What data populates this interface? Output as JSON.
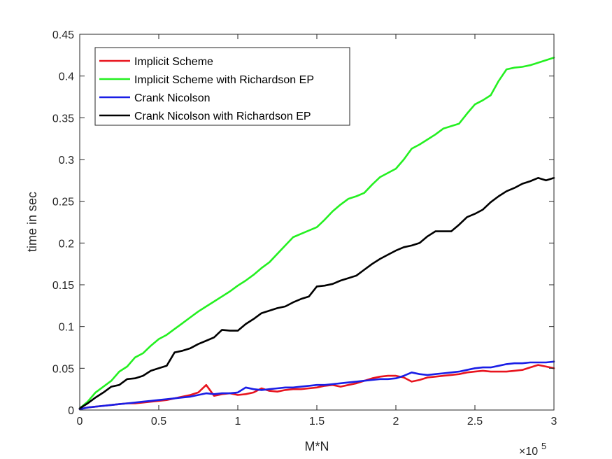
{
  "chart_data": {
    "type": "line",
    "xlabel": "M*N",
    "ylabel": "time in sec",
    "x_exponent_base": "×10",
    "x_exponent_power": "5",
    "xlim": [
      0,
      3
    ],
    "ylim": [
      0,
      0.45
    ],
    "xticks": [
      0,
      0.5,
      1,
      1.5,
      2,
      2.5,
      3
    ],
    "xtick_labels": [
      "0",
      "0.5",
      "1",
      "1.5",
      "2",
      "2.5",
      "3"
    ],
    "yticks": [
      0,
      0.05,
      0.1,
      0.15,
      0.2,
      0.25,
      0.3,
      0.35,
      0.4,
      0.45
    ],
    "ytick_labels": [
      "0",
      "0.05",
      "0.1",
      "0.15",
      "0.2",
      "0.25",
      "0.3",
      "0.35",
      "0.4",
      "0.45"
    ],
    "grid": false,
    "legend_position": "top-left",
    "series": [
      {
        "name": "Implicit Scheme",
        "color": "#e8141e",
        "x": [
          0,
          0.05,
          0.1,
          0.15,
          0.2,
          0.25,
          0.3,
          0.35,
          0.4,
          0.45,
          0.5,
          0.55,
          0.6,
          0.65,
          0.7,
          0.75,
          0.8,
          0.85,
          0.9,
          0.95,
          1.0,
          1.05,
          1.1,
          1.15,
          1.2,
          1.25,
          1.3,
          1.35,
          1.4,
          1.45,
          1.5,
          1.55,
          1.6,
          1.65,
          1.7,
          1.75,
          1.8,
          1.85,
          1.9,
          1.95,
          2.0,
          2.05,
          2.1,
          2.15,
          2.2,
          2.25,
          2.3,
          2.35,
          2.4,
          2.45,
          2.5,
          2.55,
          2.6,
          2.65,
          2.7,
          2.75,
          2.8,
          2.85,
          2.9,
          2.95,
          3.0
        ],
        "y": [
          0.001,
          0.003,
          0.004,
          0.005,
          0.006,
          0.007,
          0.008,
          0.008,
          0.009,
          0.01,
          0.011,
          0.012,
          0.014,
          0.016,
          0.018,
          0.021,
          0.03,
          0.017,
          0.019,
          0.02,
          0.018,
          0.019,
          0.021,
          0.026,
          0.023,
          0.022,
          0.024,
          0.025,
          0.025,
          0.026,
          0.027,
          0.029,
          0.03,
          0.028,
          0.03,
          0.032,
          0.035,
          0.038,
          0.04,
          0.041,
          0.041,
          0.039,
          0.034,
          0.036,
          0.039,
          0.04,
          0.041,
          0.042,
          0.043,
          0.045,
          0.046,
          0.047,
          0.046,
          0.046,
          0.046,
          0.047,
          0.048,
          0.051,
          0.054,
          0.052,
          0.05
        ]
      },
      {
        "name": "Implicit Scheme with Richardson EP",
        "color": "#24f021",
        "x": [
          0,
          0.05,
          0.1,
          0.15,
          0.2,
          0.25,
          0.3,
          0.35,
          0.4,
          0.45,
          0.5,
          0.55,
          0.6,
          0.65,
          0.7,
          0.75,
          0.8,
          0.85,
          0.9,
          0.95,
          1.0,
          1.05,
          1.1,
          1.15,
          1.2,
          1.25,
          1.3,
          1.35,
          1.4,
          1.45,
          1.5,
          1.55,
          1.6,
          1.65,
          1.7,
          1.75,
          1.8,
          1.85,
          1.9,
          1.95,
          2.0,
          2.05,
          2.1,
          2.15,
          2.2,
          2.25,
          2.3,
          2.35,
          2.4,
          2.45,
          2.5,
          2.55,
          2.6,
          2.65,
          2.7,
          2.75,
          2.8,
          2.85,
          2.9,
          2.95,
          3.0
        ],
        "y": [
          0.002,
          0.01,
          0.021,
          0.028,
          0.035,
          0.046,
          0.052,
          0.063,
          0.068,
          0.077,
          0.085,
          0.09,
          0.097,
          0.104,
          0.111,
          0.118,
          0.124,
          0.13,
          0.136,
          0.142,
          0.149,
          0.155,
          0.162,
          0.17,
          0.177,
          0.187,
          0.197,
          0.207,
          0.211,
          0.215,
          0.219,
          0.228,
          0.238,
          0.246,
          0.253,
          0.256,
          0.26,
          0.27,
          0.279,
          0.284,
          0.289,
          0.3,
          0.313,
          0.318,
          0.324,
          0.33,
          0.337,
          0.34,
          0.343,
          0.355,
          0.366,
          0.371,
          0.377,
          0.394,
          0.408,
          0.41,
          0.411,
          0.413,
          0.416,
          0.419,
          0.422
        ]
      },
      {
        "name": "Crank Nicolson",
        "color": "#1a1ee6",
        "x": [
          0,
          0.05,
          0.1,
          0.15,
          0.2,
          0.25,
          0.3,
          0.35,
          0.4,
          0.45,
          0.5,
          0.55,
          0.6,
          0.65,
          0.7,
          0.75,
          0.8,
          0.85,
          0.9,
          0.95,
          1.0,
          1.05,
          1.1,
          1.15,
          1.2,
          1.25,
          1.3,
          1.35,
          1.4,
          1.45,
          1.5,
          1.55,
          1.6,
          1.65,
          1.7,
          1.75,
          1.8,
          1.85,
          1.9,
          1.95,
          2.0,
          2.05,
          2.1,
          2.15,
          2.2,
          2.25,
          2.3,
          2.35,
          2.4,
          2.45,
          2.5,
          2.55,
          2.6,
          2.65,
          2.7,
          2.75,
          2.8,
          2.85,
          2.9,
          2.95,
          3.0
        ],
        "y": [
          0.001,
          0.003,
          0.004,
          0.005,
          0.006,
          0.007,
          0.008,
          0.009,
          0.01,
          0.011,
          0.012,
          0.013,
          0.014,
          0.015,
          0.016,
          0.018,
          0.02,
          0.019,
          0.02,
          0.02,
          0.021,
          0.027,
          0.025,
          0.024,
          0.025,
          0.026,
          0.027,
          0.027,
          0.028,
          0.029,
          0.03,
          0.03,
          0.031,
          0.032,
          0.033,
          0.034,
          0.035,
          0.036,
          0.037,
          0.037,
          0.038,
          0.041,
          0.045,
          0.043,
          0.042,
          0.043,
          0.044,
          0.045,
          0.046,
          0.048,
          0.05,
          0.051,
          0.051,
          0.053,
          0.055,
          0.056,
          0.056,
          0.057,
          0.057,
          0.057,
          0.058
        ]
      },
      {
        "name": "Crank Nicolson with Richardson EP",
        "color": "#000000",
        "x": [
          0,
          0.05,
          0.1,
          0.15,
          0.2,
          0.25,
          0.3,
          0.35,
          0.4,
          0.45,
          0.5,
          0.55,
          0.6,
          0.65,
          0.7,
          0.75,
          0.8,
          0.85,
          0.9,
          0.95,
          1.0,
          1.05,
          1.1,
          1.15,
          1.2,
          1.25,
          1.3,
          1.35,
          1.4,
          1.45,
          1.5,
          1.55,
          1.6,
          1.65,
          1.7,
          1.75,
          1.8,
          1.85,
          1.9,
          1.95,
          2.0,
          2.05,
          2.1,
          2.15,
          2.2,
          2.25,
          2.3,
          2.35,
          2.4,
          2.45,
          2.5,
          2.55,
          2.6,
          2.65,
          2.7,
          2.75,
          2.8,
          2.85,
          2.9,
          2.95,
          3.0
        ],
        "y": [
          0.002,
          0.008,
          0.015,
          0.021,
          0.028,
          0.03,
          0.037,
          0.038,
          0.041,
          0.047,
          0.05,
          0.053,
          0.069,
          0.071,
          0.074,
          0.079,
          0.083,
          0.087,
          0.096,
          0.095,
          0.095,
          0.103,
          0.109,
          0.116,
          0.119,
          0.122,
          0.124,
          0.129,
          0.133,
          0.136,
          0.148,
          0.149,
          0.151,
          0.155,
          0.158,
          0.161,
          0.168,
          0.175,
          0.181,
          0.186,
          0.191,
          0.195,
          0.197,
          0.2,
          0.208,
          0.214,
          0.214,
          0.214,
          0.222,
          0.231,
          0.235,
          0.24,
          0.249,
          0.256,
          0.262,
          0.266,
          0.271,
          0.274,
          0.278,
          0.275,
          0.278
        ]
      }
    ]
  }
}
